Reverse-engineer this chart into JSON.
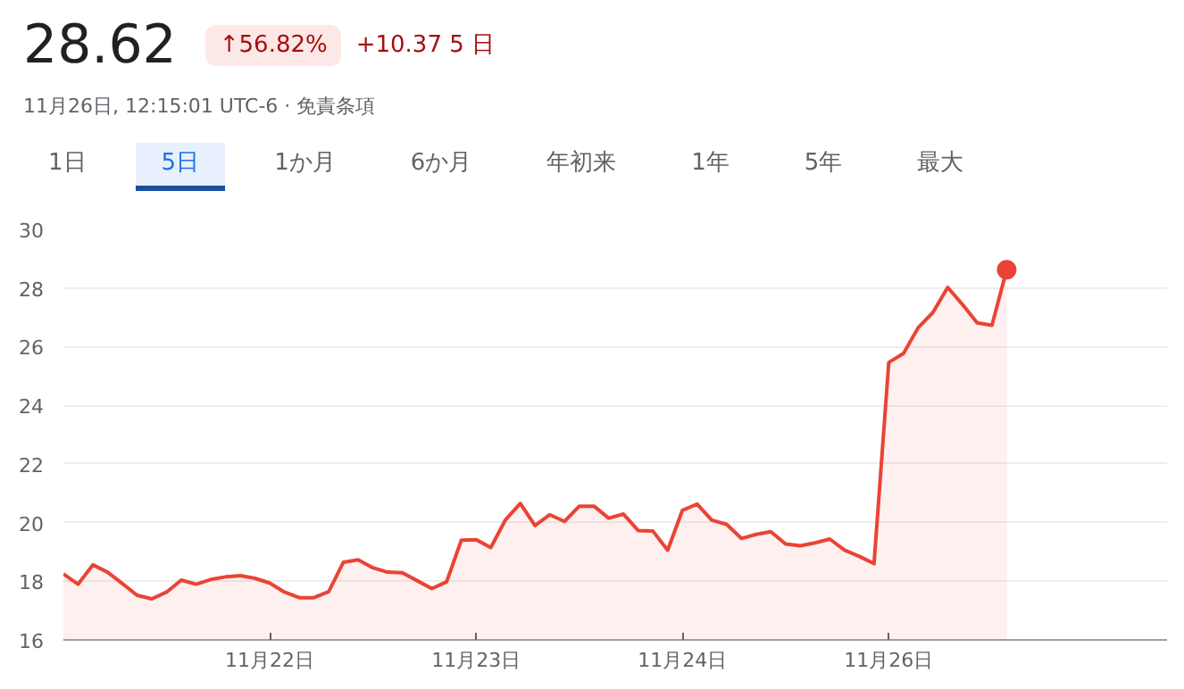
{
  "chart_data": {
    "type": "area",
    "title": "28.62",
    "subtitle": "11月26日, 12:15:01 UTC-6 · 免責条項",
    "annotations": [
      "↑56.82%",
      "+10.37 5 日",
      "1日",
      "5日",
      "1か月",
      "6か月",
      "年初来",
      "1年",
      "5年",
      "最大"
    ],
    "categories": [
      null,
      null,
      null,
      null,
      null,
      null,
      null,
      null,
      null,
      null,
      null,
      null,
      null,
      null,
      "11月22日",
      null,
      null,
      null,
      null,
      null,
      null,
      null,
      null,
      null,
      null,
      null,
      null,
      null,
      "11月23日",
      null,
      null,
      null,
      null,
      null,
      null,
      null,
      null,
      null,
      null,
      null,
      null,
      null,
      "11月24日",
      null,
      null,
      null,
      null,
      null,
      null,
      null,
      null,
      null,
      null,
      null,
      null,
      null,
      "11月26日",
      null,
      null,
      null,
      null,
      null,
      null,
      null,
      null
    ],
    "series": [
      {
        "color": "#ea4335",
        "values": [
          18.25,
          17.9,
          18.56,
          18.31,
          17.92,
          17.52,
          17.4,
          17.63,
          18.04,
          17.9,
          18.06,
          18.15,
          18.19,
          18.1,
          17.94,
          17.63,
          17.44,
          17.44,
          17.65,
          18.65,
          18.73,
          18.46,
          18.31,
          18.29,
          18.02,
          17.75,
          17.98,
          19.4,
          19.42,
          19.15,
          20.1,
          20.65,
          19.9,
          20.27,
          20.04,
          20.56,
          20.56,
          20.15,
          20.29,
          19.73,
          19.71,
          19.06,
          20.42,
          20.63,
          20.08,
          19.94,
          19.46,
          19.6,
          19.69,
          19.27,
          19.21,
          19.31,
          19.44,
          19.06,
          18.85,
          18.6,
          25.46,
          25.77,
          26.65,
          27.17,
          28.02,
          27.44,
          26.81,
          26.73,
          28.62
        ]
      }
    ],
    "ylim": [
      16,
      30
    ],
    "yticks": [
      16,
      18,
      20,
      22,
      24,
      26,
      28,
      30
    ],
    "grid": "y"
  }
}
